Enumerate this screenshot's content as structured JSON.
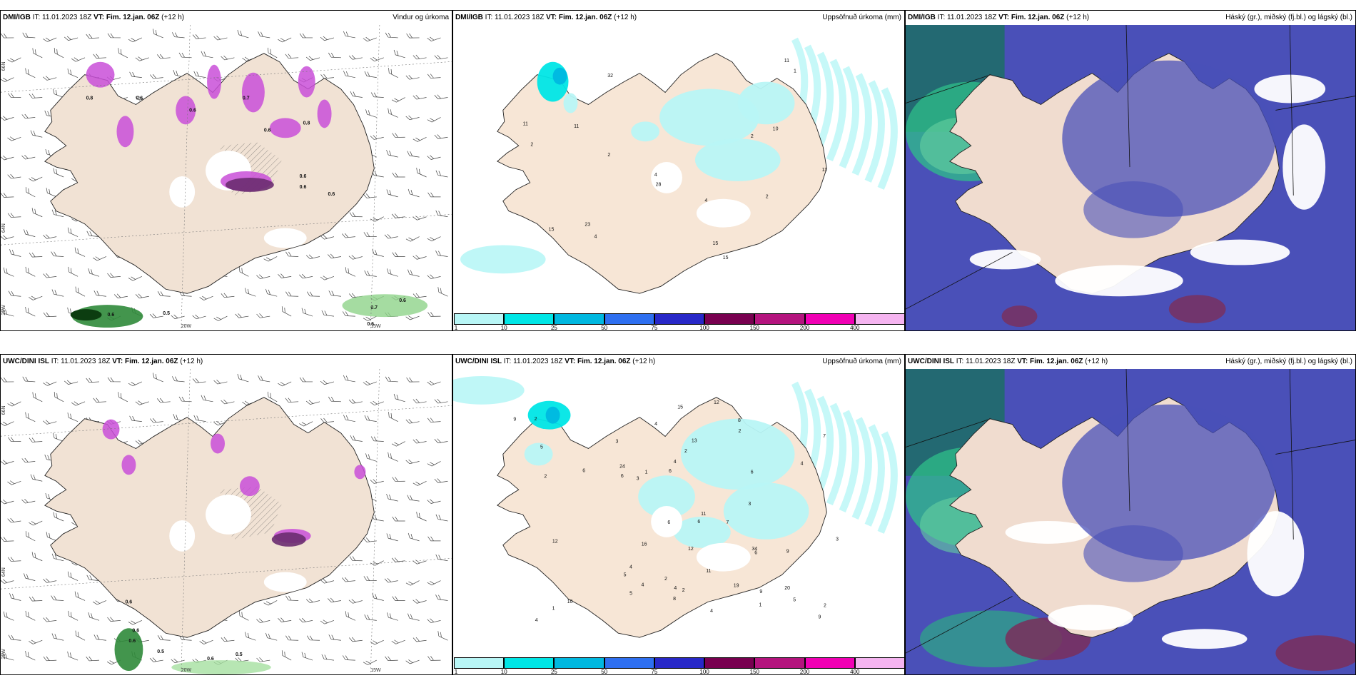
{
  "panels": [
    {
      "id": "p1",
      "src": "DMI/IGB",
      "it_label": "IT:",
      "it": "11.01.2023 18Z",
      "vt_label": "VT:",
      "vt": "Fim. 12.jan. 06Z",
      "lead": "(+12 h)",
      "title": "Vindur og úrkoma"
    },
    {
      "id": "p2",
      "src": "DMI/IGB",
      "it_label": "IT:",
      "it": "11.01.2023 18Z",
      "vt_label": "VT:",
      "vt": "Fim. 12.jan. 06Z",
      "lead": "(+12 h)",
      "title": "Uppsöfnuð úrkoma (mm)"
    },
    {
      "id": "p3",
      "src": "DMI/IGB",
      "it_label": "IT:",
      "it": "11.01.2023 18Z",
      "vt_label": "VT:",
      "vt": "Fim. 12.jan. 06Z",
      "lead": "(+12 h)",
      "title": "Háský (gr.), miðský (fj.bl.) og lágský (bl.)"
    },
    {
      "id": "p4",
      "src": "UWC/DINI ISL",
      "it_label": "IT:",
      "it": "11.01.2023 18Z",
      "vt_label": "VT:",
      "vt": "Fim. 12.jan. 06Z",
      "lead": "(+12 h)",
      "title": ""
    },
    {
      "id": "p5",
      "src": "UWC/DINI ISL",
      "it_label": "IT:",
      "it": "11.01.2023 18Z",
      "vt_label": "VT:",
      "vt": "Fim. 12.jan. 06Z",
      "lead": "(+12 h)",
      "title": "Uppsöfnuð úrkoma (mm)"
    },
    {
      "id": "p6",
      "src": "UWC/DINI ISL",
      "it_label": "IT:",
      "it": "11.01.2023 18Z",
      "vt_label": "VT:",
      "vt": "Fim. 12.jan. 06Z",
      "lead": "(+12 h)",
      "title": "Háský (gr.), miðský (fj.bl.) og lágský (bl.)"
    }
  ],
  "axes": {
    "lat66": "66N",
    "lat64": "64N",
    "lon25": "25W",
    "lon20": "20W",
    "lon15": "15W"
  },
  "colorbar": {
    "ticks": [
      "1",
      "10",
      "25",
      "50",
      "75",
      "100",
      "150",
      "200",
      "400"
    ],
    "colors": [
      "#b8f6f6",
      "#00e6e6",
      "#00b8e0",
      "#2e6ff0",
      "#2828c8",
      "#780050",
      "#b4147e",
      "#f000b4",
      "#f5b4f0"
    ]
  },
  "precip_labels_top": [
    "15",
    "32",
    "23",
    "11",
    "10",
    "15",
    "11",
    "2",
    "28",
    "4",
    "15",
    "11",
    "4",
    "4",
    "2",
    "11",
    "2",
    "1",
    "2"
  ],
  "precip_labels_bottom": [
    "1",
    "9",
    "11",
    "12",
    "4",
    "12",
    "20",
    "8",
    "9",
    "5",
    "9",
    "6",
    "4",
    "15",
    "19",
    "24",
    "34",
    "12",
    "6",
    "7",
    "9",
    "10",
    "8",
    "7",
    "6",
    "2",
    "1",
    "2",
    "4",
    "11",
    "5",
    "16",
    "13",
    "4",
    "6",
    "4",
    "4",
    "6",
    "2",
    "2",
    "6",
    "4",
    "3",
    "5",
    "3",
    "3",
    "4",
    "2",
    "3",
    "2",
    "5",
    "6",
    "2",
    "1"
  ],
  "wind_values_top": [
    "0.8",
    "0.6",
    "0.6",
    "0.7",
    "0.6",
    "0.8",
    "0.6",
    "0.6",
    "0.6",
    "0.6",
    "0.5",
    "0.7",
    "0.6",
    "0.6"
  ],
  "wind_values_bottom": [
    "0.6",
    "0.6",
    "0.5",
    "0.6",
    "0.6",
    "0.5"
  ]
}
